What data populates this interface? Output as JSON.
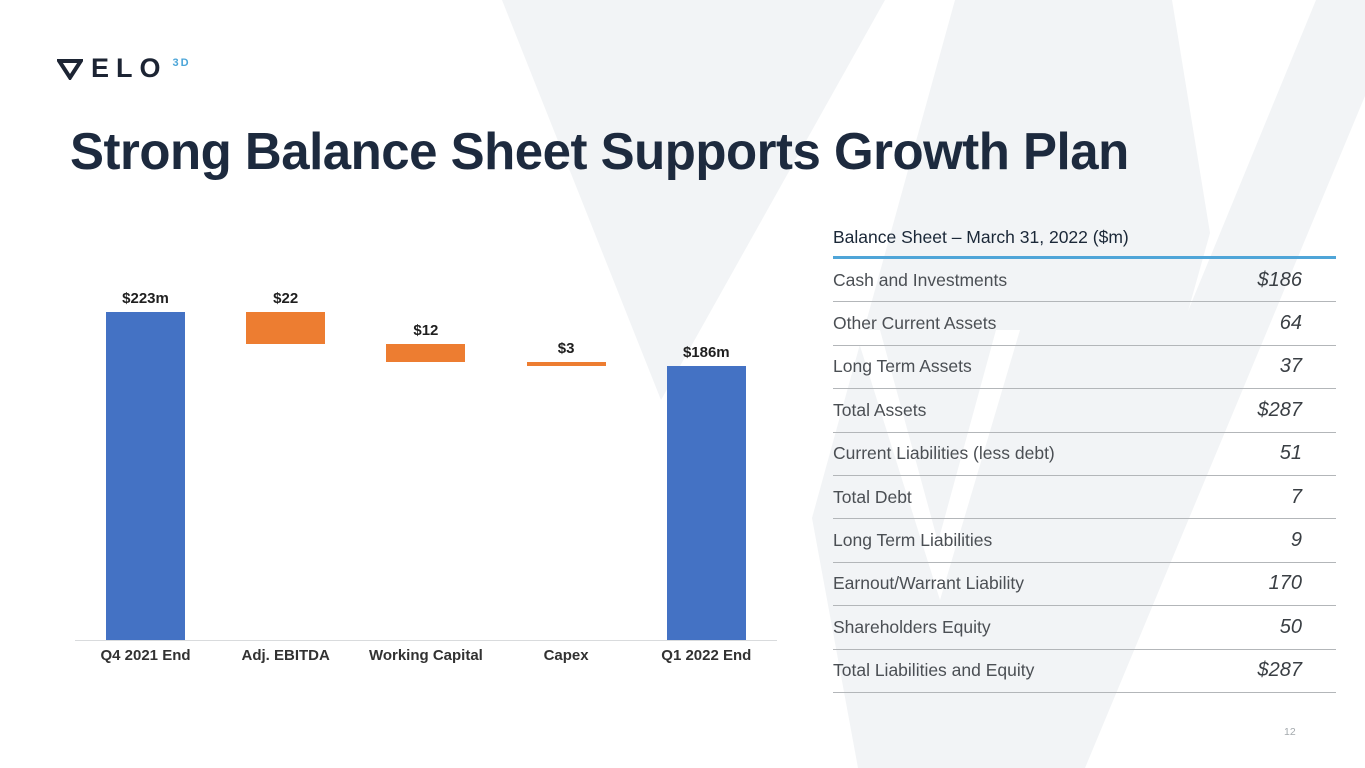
{
  "logo": {
    "letters": "ELO",
    "sup": "3D",
    "icon": "nabla-triangle"
  },
  "title": "Strong Balance Sheet Supports Growth Plan",
  "page_number": "12",
  "chart_data": {
    "type": "bar",
    "subtype": "waterfall",
    "categories": [
      "Q4 2021 End",
      "Adj. EBITDA",
      "Working Capital",
      "Capex",
      "Q1 2022 End"
    ],
    "values": [
      223,
      -22,
      -12,
      -3,
      186
    ],
    "is_total": [
      true,
      false,
      false,
      false,
      true
    ],
    "labels": [
      "$223m",
      "$22",
      "$12",
      "$3",
      "$186m"
    ],
    "total_color": "#4472C4",
    "change_color": "#ED7D31",
    "ylim": [
      0,
      240
    ],
    "grid": false,
    "legend": false
  },
  "table": {
    "title": "Balance Sheet – March 31, 2022 ($m)",
    "rows": [
      {
        "label": "Cash and Investments",
        "value": "$186"
      },
      {
        "label": "Other Current Assets",
        "value": "64"
      },
      {
        "label": "Long Term Assets",
        "value": "37"
      },
      {
        "label": "Total Assets",
        "value": "$287"
      },
      {
        "label": "Current Liabilities (less debt)",
        "value": "51"
      },
      {
        "label": "Total Debt",
        "value": "7"
      },
      {
        "label": "Long Term Liabilities",
        "value": "9"
      },
      {
        "label": "Earnout/Warrant Liability",
        "value": "170"
      },
      {
        "label": "Shareholders Equity",
        "value": "50"
      },
      {
        "label": "Total Liabilities and Equity",
        "value": "$287"
      }
    ]
  },
  "colors": {
    "watermark_gray": "#f2f4f6",
    "accent_blue": "#4FA5D8",
    "navy": "#1D2A3E"
  }
}
